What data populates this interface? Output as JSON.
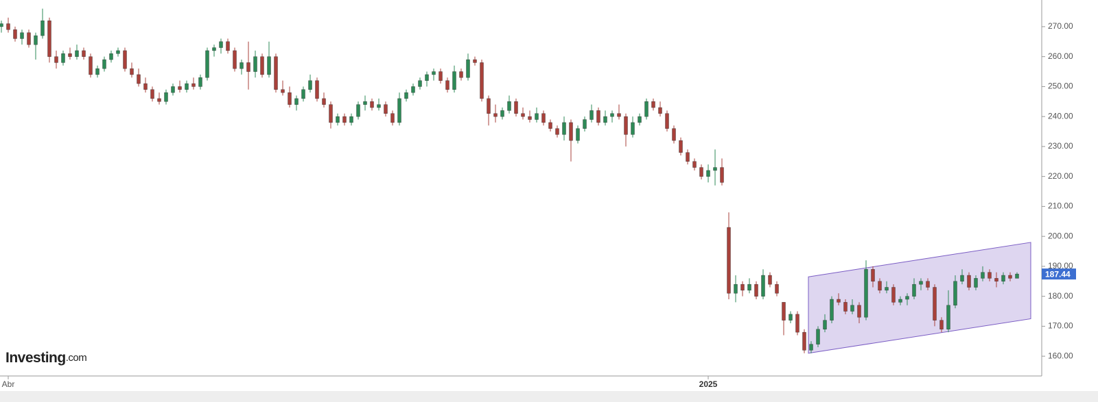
{
  "chart_data": {
    "type": "candlestick",
    "up_color": "#2e8a57",
    "down_color": "#a8413b",
    "ylim": [
      153.4,
      278.9
    ],
    "yticks": [
      {
        "value": 160,
        "label": "160.00"
      },
      {
        "value": 170,
        "label": "170.00"
      },
      {
        "value": 180,
        "label": "180.00"
      },
      {
        "value": 190,
        "label": "190.00"
      },
      {
        "value": 200,
        "label": "200.00"
      },
      {
        "value": 210,
        "label": "210.00"
      },
      {
        "value": 220,
        "label": "220.00"
      },
      {
        "value": 230,
        "label": "230.00"
      },
      {
        "value": 240,
        "label": "240.00"
      },
      {
        "value": 250,
        "label": "250.00"
      },
      {
        "value": 260,
        "label": "260.00"
      },
      {
        "value": 270,
        "label": "270.00"
      }
    ],
    "last_price": {
      "value": 187.44,
      "label": "187.44"
    },
    "channel": {
      "upper": [
        186.5,
        198
      ],
      "lower": [
        161,
        172.5
      ],
      "color": "#7a5cc4"
    },
    "brand": "Investing",
    "brand_suffix": ".com",
    "categories": [
      null,
      "Abr",
      null,
      null,
      null,
      null,
      null,
      null,
      null,
      null,
      null,
      null,
      null,
      null,
      null,
      null,
      null,
      null,
      null,
      null,
      null,
      null,
      null,
      null,
      null,
      null,
      null,
      null,
      null,
      null,
      null,
      null,
      null,
      null,
      null,
      null,
      null,
      null,
      null,
      null,
      null,
      null,
      null,
      null,
      null,
      null,
      null,
      null,
      null,
      null,
      null,
      null,
      null,
      null,
      null,
      null,
      null,
      null,
      null,
      null,
      null,
      null,
      null,
      null,
      null,
      null,
      null,
      null,
      null,
      null,
      null,
      null,
      null,
      null,
      null,
      null,
      null,
      null,
      null,
      null,
      null,
      null,
      null,
      null,
      null,
      null,
      null,
      null,
      null,
      null,
      null,
      null,
      null,
      null,
      null,
      null,
      null,
      null,
      null,
      null,
      null,
      null,
      null,
      "2025",
      null,
      null,
      null,
      null,
      null,
      null,
      null,
      null,
      null,
      null,
      null,
      null,
      null,
      null,
      null,
      null,
      null,
      null,
      null,
      null,
      null,
      null,
      null,
      null,
      null,
      null,
      null,
      null,
      null,
      null,
      null,
      null,
      null,
      null,
      null,
      null,
      null,
      null,
      null,
      null,
      null,
      null,
      null,
      null,
      null
    ],
    "ohlc": [
      [
        270,
        272,
        268,
        271
      ],
      [
        271,
        273,
        268,
        269
      ],
      [
        269,
        270,
        265,
        266
      ],
      [
        266,
        269,
        264,
        268
      ],
      [
        268,
        269,
        263,
        264
      ],
      [
        264,
        268,
        259,
        267
      ],
      [
        267,
        276,
        266,
        272
      ],
      [
        272,
        273,
        258,
        260
      ],
      [
        260,
        262,
        256,
        258
      ],
      [
        258,
        262,
        257,
        261
      ],
      [
        261,
        263,
        259,
        260
      ],
      [
        260,
        264,
        259,
        262
      ],
      [
        262,
        263,
        259,
        260
      ],
      [
        260,
        261,
        253,
        254
      ],
      [
        254,
        257,
        253,
        256
      ],
      [
        256,
        260,
        255,
        259
      ],
      [
        259,
        262,
        258,
        261
      ],
      [
        261,
        263,
        260,
        262
      ],
      [
        262,
        263,
        255,
        256
      ],
      [
        256,
        258,
        253,
        254
      ],
      [
        254,
        256,
        250,
        251
      ],
      [
        251,
        253,
        248,
        249
      ],
      [
        249,
        250,
        245,
        246
      ],
      [
        246,
        248,
        244,
        245
      ],
      [
        245,
        249,
        244,
        248
      ],
      [
        248,
        251,
        247,
        250
      ],
      [
        250,
        252,
        248,
        249
      ],
      [
        249,
        252,
        248,
        251
      ],
      [
        251,
        253,
        249,
        250
      ],
      [
        250,
        254,
        249,
        253
      ],
      [
        253,
        263,
        252,
        262
      ],
      [
        262,
        264,
        260,
        263
      ],
      [
        263,
        266,
        261,
        265
      ],
      [
        265,
        266,
        261,
        262
      ],
      [
        262,
        263,
        255,
        256
      ],
      [
        256,
        259,
        254,
        258
      ],
      [
        258,
        265,
        249,
        255
      ],
      [
        255,
        262,
        253,
        260
      ],
      [
        260,
        261,
        253,
        254
      ],
      [
        254,
        265,
        253,
        260
      ],
      [
        260,
        261,
        248,
        249
      ],
      [
        249,
        252,
        247,
        248
      ],
      [
        248,
        250,
        243,
        244
      ],
      [
        244,
        247,
        242,
        246
      ],
      [
        246,
        250,
        245,
        249
      ],
      [
        249,
        254,
        248,
        252
      ],
      [
        252,
        253,
        245,
        246
      ],
      [
        246,
        248,
        243,
        244
      ],
      [
        244,
        245,
        236,
        238
      ],
      [
        238,
        241,
        237,
        240
      ],
      [
        240,
        241,
        237,
        238
      ],
      [
        238,
        241,
        237,
        240
      ],
      [
        240,
        245,
        239,
        244
      ],
      [
        244,
        247,
        242,
        245
      ],
      [
        245,
        246,
        242,
        243
      ],
      [
        243,
        246,
        242,
        244
      ],
      [
        244,
        245,
        240,
        241
      ],
      [
        241,
        242,
        237,
        238
      ],
      [
        238,
        248,
        237,
        246
      ],
      [
        246,
        249,
        245,
        248
      ],
      [
        248,
        251,
        247,
        250
      ],
      [
        250,
        253,
        249,
        252
      ],
      [
        252,
        255,
        250,
        254
      ],
      [
        254,
        256,
        252,
        255
      ],
      [
        255,
        256,
        251,
        252
      ],
      [
        252,
        253,
        248,
        249
      ],
      [
        249,
        257,
        248,
        255
      ],
      [
        255,
        256,
        252,
        253
      ],
      [
        253,
        261,
        252,
        259
      ],
      [
        259,
        260,
        257,
        258
      ],
      [
        258,
        259,
        245,
        246
      ],
      [
        246,
        247,
        237,
        241
      ],
      [
        241,
        244,
        238,
        240
      ],
      [
        240,
        243,
        239,
        242
      ],
      [
        242,
        247,
        241,
        245
      ],
      [
        245,
        246,
        240,
        241
      ],
      [
        241,
        243,
        239,
        240
      ],
      [
        240,
        242,
        238,
        239
      ],
      [
        239,
        243,
        238,
        241
      ],
      [
        241,
        242,
        237,
        238
      ],
      [
        238,
        239,
        235,
        236
      ],
      [
        236,
        237,
        233,
        234
      ],
      [
        234,
        240,
        232,
        238
      ],
      [
        238,
        239,
        225,
        232
      ],
      [
        232,
        237,
        231,
        236
      ],
      [
        236,
        240,
        235,
        239
      ],
      [
        239,
        244,
        238,
        242
      ],
      [
        242,
        243,
        237,
        238
      ],
      [
        238,
        242,
        237,
        240
      ],
      [
        240,
        242,
        238,
        241
      ],
      [
        241,
        244,
        239,
        240
      ],
      [
        240,
        241,
        230,
        234
      ],
      [
        234,
        240,
        233,
        238
      ],
      [
        238,
        241,
        237,
        240
      ],
      [
        240,
        246,
        239,
        245
      ],
      [
        245,
        246,
        242,
        243
      ],
      [
        243,
        245,
        240,
        241
      ],
      [
        241,
        242,
        235,
        236
      ],
      [
        236,
        237,
        231,
        232
      ],
      [
        232,
        233,
        227,
        228
      ],
      [
        228,
        229,
        224,
        225
      ],
      [
        225,
        226,
        222,
        223
      ],
      [
        223,
        224,
        219,
        220
      ],
      [
        220,
        224,
        218,
        222
      ],
      [
        222,
        229,
        217,
        223
      ],
      [
        223,
        226,
        217,
        218
      ],
      [
        203,
        208,
        179,
        181
      ],
      [
        181,
        187,
        178,
        184
      ],
      [
        184,
        185,
        180,
        182
      ],
      [
        182,
        186,
        181,
        184
      ],
      [
        184,
        185,
        179,
        180
      ],
      [
        180,
        189,
        179,
        187
      ],
      [
        187,
        188,
        183,
        184
      ],
      [
        184,
        185,
        180,
        181
      ],
      [
        178,
        178,
        167,
        172
      ],
      [
        172,
        175,
        171,
        174
      ],
      [
        174,
        175,
        167,
        168
      ],
      [
        168,
        169,
        161,
        162
      ],
      [
        162,
        165,
        161,
        164
      ],
      [
        164,
        170,
        163,
        169
      ],
      [
        169,
        174,
        168,
        172
      ],
      [
        172,
        180,
        171,
        179
      ],
      [
        179,
        181,
        177,
        178
      ],
      [
        178,
        179,
        174,
        175
      ],
      [
        175,
        179,
        174,
        177
      ],
      [
        177,
        178,
        171,
        173
      ],
      [
        173,
        192,
        172,
        189
      ],
      [
        189,
        190,
        183,
        185
      ],
      [
        185,
        186,
        181,
        182
      ],
      [
        182,
        185,
        181,
        183
      ],
      [
        183,
        184,
        177,
        178
      ],
      [
        178,
        180,
        177,
        179
      ],
      [
        179,
        181,
        177,
        180
      ],
      [
        180,
        186,
        179,
        184
      ],
      [
        184,
        186,
        182,
        185
      ],
      [
        185,
        186,
        182,
        183
      ],
      [
        183,
        184,
        170,
        172
      ],
      [
        172,
        173,
        168,
        169
      ],
      [
        169,
        182,
        168,
        177
      ],
      [
        177,
        187,
        176,
        185
      ],
      [
        185,
        189,
        184,
        187
      ],
      [
        187,
        188,
        182,
        183
      ],
      [
        183,
        187,
        182,
        186
      ],
      [
        186,
        190,
        185,
        188
      ],
      [
        188,
        189,
        185,
        186
      ],
      [
        186,
        188,
        183,
        185
      ],
      [
        185,
        188,
        184,
        187
      ],
      [
        187,
        188,
        185,
        186
      ],
      [
        186,
        188,
        186,
        187.44
      ]
    ]
  }
}
